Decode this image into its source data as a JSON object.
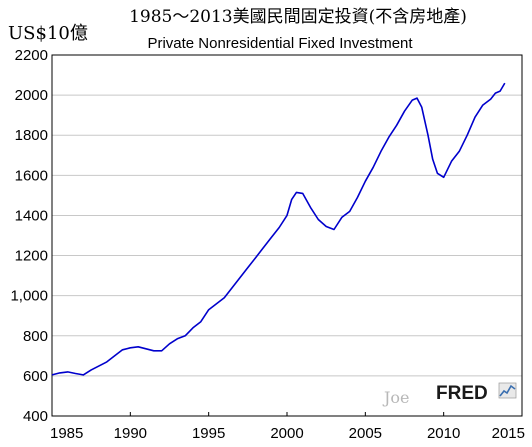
{
  "chart_data": {
    "type": "line",
    "title": "1985～2013美國民間固定投資(不含房地產)",
    "subtitle": "Private Nonresidential Fixed Investment",
    "ylabel": "US$10億",
    "xlabel": "",
    "xlim": [
      1985,
      2015
    ],
    "ylim": [
      400,
      2200
    ],
    "x_ticks": [
      1985,
      1990,
      1995,
      2000,
      2005,
      2010,
      2015
    ],
    "x_tick_labels": [
      "1985",
      "1990",
      "1995",
      "2000",
      "2005",
      "2010",
      "2015"
    ],
    "y_ticks": [
      400,
      600,
      800,
      1000,
      1200,
      1400,
      1600,
      1800,
      2000,
      2200
    ],
    "y_tick_labels": [
      "400",
      "600",
      "800",
      "1,000",
      "1200",
      "1400",
      "1600",
      "1800",
      "2000",
      "2200"
    ],
    "grid": true,
    "legend": "none",
    "line_color": "#0000cc",
    "series": [
      {
        "x": [
          1985.0,
          1985.5,
          1986.0,
          1986.5,
          1987.0,
          1987.5,
          1988.0,
          1988.5,
          1989.0,
          1989.5,
          1990.0,
          1990.5,
          1991.0,
          1991.5,
          1992.0,
          1992.5,
          1993.0,
          1993.5,
          1994.0,
          1994.5,
          1995.0,
          1995.5,
          1996.0,
          1996.5,
          1997.0,
          1997.5,
          1998.0,
          1998.5,
          1999.0,
          1999.5,
          2000.0,
          2000.3,
          2000.6,
          2001.0,
          2001.5,
          2002.0,
          2002.5,
          2003.0,
          2003.5,
          2004.0,
          2004.5,
          2005.0,
          2005.5,
          2006.0,
          2006.5,
          2007.0,
          2007.5,
          2008.0,
          2008.3,
          2008.6,
          2009.0,
          2009.3,
          2009.6,
          2010.0,
          2010.5,
          2011.0,
          2011.5,
          2012.0,
          2012.5,
          2013.0,
          2013.3,
          2013.6,
          2013.9
        ],
        "values": [
          605,
          615,
          620,
          612,
          605,
          630,
          650,
          670,
          700,
          730,
          740,
          745,
          735,
          725,
          725,
          760,
          785,
          800,
          840,
          870,
          930,
          960,
          990,
          1040,
          1090,
          1140,
          1190,
          1240,
          1290,
          1340,
          1400,
          1480,
          1515,
          1510,
          1440,
          1380,
          1345,
          1330,
          1390,
          1420,
          1490,
          1570,
          1640,
          1720,
          1790,
          1850,
          1920,
          1975,
          1985,
          1940,
          1800,
          1680,
          1610,
          1590,
          1670,
          1720,
          1800,
          1890,
          1950,
          1980,
          2010,
          2020,
          2060
        ]
      }
    ],
    "watermark_text": "Joe",
    "logo_text": "FRED"
  }
}
